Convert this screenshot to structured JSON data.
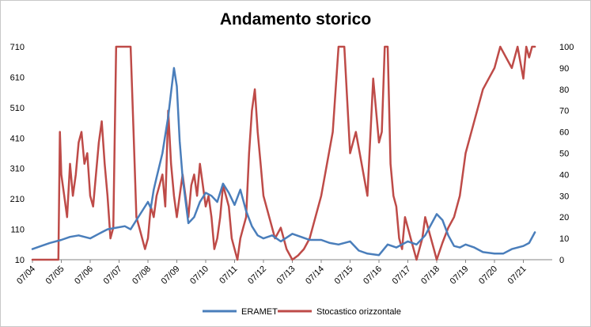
{
  "chart_data": {
    "type": "line",
    "title": "Andamento storico",
    "x_ticks": [
      "07/04",
      "07/05",
      "07/06",
      "07/07",
      "07/08",
      "07/09",
      "07/10",
      "07/11",
      "07/12",
      "07/13",
      "07/14",
      "07/15",
      "07/16",
      "07/17",
      "07/18",
      "07/19",
      "07/20",
      "07/21"
    ],
    "y_left": {
      "ticks": [
        "10",
        "110",
        "210",
        "310",
        "410",
        "510",
        "610",
        "710"
      ],
      "range": [
        10,
        710
      ]
    },
    "y_right": {
      "ticks": [
        "0",
        "10",
        "20",
        "30",
        "40",
        "50",
        "60",
        "70",
        "80",
        "90",
        "100"
      ],
      "range": [
        0,
        100
      ]
    },
    "legend_position": "bottom",
    "series": [
      {
        "name": "ERAMET",
        "axis": "left",
        "color": "#4a7ebb",
        "x": [
          0,
          0.3,
          0.6,
          1.0,
          1.3,
          1.6,
          2.0,
          2.3,
          2.6,
          2.9,
          3.2,
          3.4,
          3.6,
          3.8,
          4.0,
          4.1,
          4.2,
          4.3,
          4.4,
          4.5,
          4.6,
          4.7,
          4.8,
          4.9,
          5.0,
          5.1,
          5.2,
          5.4,
          5.6,
          5.8,
          6.0,
          6.2,
          6.4,
          6.6,
          6.8,
          7.0,
          7.2,
          7.4,
          7.6,
          7.8,
          8.0,
          8.3,
          8.6,
          9.0,
          9.3,
          9.6,
          10.0,
          10.3,
          10.6,
          11.0,
          11.3,
          11.6,
          12.0,
          12.3,
          12.6,
          13.0,
          13.3,
          13.6,
          14.0,
          14.2,
          14.4,
          14.6,
          14.8,
          15.0,
          15.3,
          15.6,
          16.0,
          16.3,
          16.6,
          17.0,
          17.2,
          17.4
        ],
        "y": [
          45,
          55,
          65,
          75,
          85,
          90,
          80,
          95,
          110,
          115,
          120,
          110,
          140,
          170,
          200,
          180,
          240,
          280,
          320,
          360,
          420,
          480,
          560,
          640,
          580,
          400,
          280,
          130,
          150,
          200,
          230,
          220,
          200,
          260,
          230,
          190,
          240,
          170,
          120,
          90,
          80,
          90,
          70,
          95,
          85,
          75,
          75,
          65,
          60,
          70,
          40,
          30,
          25,
          60,
          50,
          70,
          60,
          90,
          160,
          140,
          90,
          55,
          50,
          60,
          50,
          35,
          30,
          30,
          45,
          55,
          65,
          100
        ]
      },
      {
        "name": "Stocastico orizzontale",
        "axis": "right",
        "color": "#be4b48",
        "x": [
          0,
          0.5,
          0.9,
          0.95,
          1.0,
          1.1,
          1.2,
          1.3,
          1.4,
          1.5,
          1.6,
          1.7,
          1.8,
          1.9,
          2.0,
          2.1,
          2.2,
          2.3,
          2.4,
          2.5,
          2.6,
          2.7,
          2.8,
          2.9,
          3.0,
          3.1,
          3.2,
          3.3,
          3.4,
          3.5,
          3.6,
          3.7,
          3.8,
          3.9,
          4.0,
          4.1,
          4.2,
          4.3,
          4.4,
          4.5,
          4.6,
          4.7,
          4.8,
          4.9,
          5.0,
          5.05,
          5.1,
          5.2,
          5.3,
          5.4,
          5.5,
          5.6,
          5.7,
          5.8,
          5.9,
          6.0,
          6.1,
          6.2,
          6.3,
          6.4,
          6.5,
          6.6,
          6.7,
          6.8,
          6.9,
          7.0,
          7.1,
          7.2,
          7.3,
          7.4,
          7.5,
          7.6,
          7.7,
          7.8,
          7.9,
          8.0,
          8.2,
          8.4,
          8.6,
          8.8,
          9.0,
          9.2,
          9.4,
          9.6,
          9.8,
          10.0,
          10.2,
          10.4,
          10.6,
          10.8,
          11.0,
          11.2,
          11.4,
          11.6,
          11.8,
          12.0,
          12.1,
          12.2,
          12.3,
          12.4,
          12.5,
          12.6,
          12.7,
          12.8,
          12.9,
          13.0,
          13.1,
          13.2,
          13.3,
          13.4,
          13.5,
          13.6,
          13.7,
          13.8,
          13.9,
          14.0,
          14.2,
          14.4,
          14.6,
          14.8,
          15.0,
          15.2,
          15.4,
          15.6,
          15.8,
          16.0,
          16.2,
          16.4,
          16.6,
          16.8,
          17.0,
          17.1,
          17.2,
          17.3,
          17.4
        ],
        "y": [
          0,
          0,
          0,
          60,
          40,
          30,
          20,
          45,
          30,
          40,
          55,
          60,
          45,
          50,
          30,
          25,
          40,
          55,
          65,
          45,
          30,
          10,
          15,
          100,
          100,
          100,
          100,
          100,
          100,
          60,
          20,
          15,
          10,
          5,
          10,
          25,
          20,
          30,
          35,
          40,
          25,
          70,
          45,
          30,
          20,
          25,
          30,
          40,
          30,
          20,
          35,
          40,
          30,
          45,
          35,
          25,
          30,
          20,
          5,
          10,
          20,
          35,
          30,
          25,
          10,
          5,
          0,
          10,
          15,
          20,
          50,
          70,
          80,
          60,
          45,
          30,
          20,
          10,
          15,
          5,
          0,
          2,
          5,
          10,
          20,
          30,
          45,
          60,
          100,
          100,
          50,
          60,
          45,
          30,
          85,
          55,
          60,
          100,
          100,
          45,
          30,
          25,
          10,
          5,
          20,
          15,
          10,
          5,
          0,
          5,
          10,
          20,
          15,
          10,
          5,
          0,
          8,
          15,
          20,
          30,
          50,
          60,
          70,
          80,
          85,
          90,
          100,
          95,
          90,
          100,
          85,
          100,
          95,
          100,
          100
        ]
      }
    ]
  }
}
